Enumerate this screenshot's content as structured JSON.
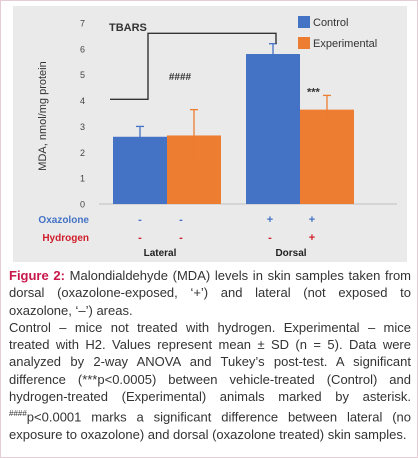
{
  "chart_data": {
    "type": "bar",
    "title": "TBARS",
    "ylabel": "MDA, nmol/mg protein",
    "ylim": [
      0,
      7
    ],
    "yticks": [
      0,
      1,
      2,
      3,
      4,
      5,
      6,
      7
    ],
    "grid": false,
    "legend_position": "top-right",
    "groups": [
      "Lateral",
      "Dorsal"
    ],
    "series": [
      {
        "name": "Control",
        "color": "#4472c4",
        "values": [
          2.6,
          5.8
        ],
        "sd": [
          0.4,
          0.4
        ]
      },
      {
        "name": "Experimental",
        "color": "#ed7d31",
        "values": [
          2.65,
          3.65
        ],
        "sd": [
          1.0,
          0.55
        ]
      }
    ],
    "condition_rows": [
      {
        "label": "Oxazolone",
        "color": "#4472c4",
        "signs": [
          "-",
          "-",
          "+",
          "+"
        ]
      },
      {
        "label": "Hydrogen",
        "color": "#d01f2c",
        "signs": [
          "-",
          "-",
          "-",
          "+"
        ]
      }
    ],
    "annotations": {
      "between_groups": "####",
      "dorsal_experimental": "***"
    }
  },
  "caption": {
    "label": "Figure 2:",
    "line1": " Malondialdehyde (MDA) levels in skin samples taken from dorsal (oxazolone-exposed, ‘+’) and lateral (not exposed to oxazolone, ‘–’) areas.",
    "body_part1": "Control – mice not treated with hydrogen. Experimental – mice treated with H2. Values represent mean ± SD (n = 5). Data were analyzed by 2-way ANOVA and Tukey’s post-test. A significant difference (***p<0.0005) between vehicle-treated (Control) and hydrogen-treated (Experimental) animals marked by asterisk. ",
    "body_sup": "####",
    "body_part2": "p<0.0001 marks a significant difference between lateral (no exposure to oxazolone) and dorsal (oxazolone treated) skin samples."
  },
  "colors": {
    "control": "#4472c4",
    "experimental": "#ed7d31",
    "figure_label": "#c8174a",
    "hydrogen_label": "#d01f2c",
    "chart_background": "#eaeaea"
  }
}
